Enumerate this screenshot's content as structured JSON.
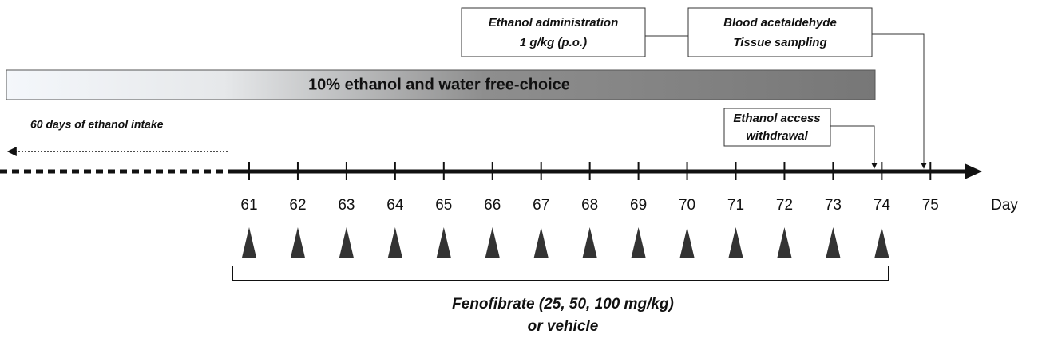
{
  "boxes": [
    {
      "lines": [
        "Ethanol administration",
        "1 g/kg (p.o.)"
      ]
    },
    {
      "lines": [
        "Blood acetaldehyde",
        "Tissue sampling"
      ]
    },
    {
      "lines": [
        "Ethanol access",
        "withdrawal"
      ]
    }
  ],
  "free_choice_label": "10% ethanol and water free-choice",
  "intake_label": "60 days of ethanol intake",
  "days": [
    61,
    62,
    63,
    64,
    65,
    66,
    67,
    68,
    69,
    70,
    71,
    72,
    73,
    74,
    75
  ],
  "axis_label": "Day",
  "treatment_lines": [
    "Fenofibrate (25, 50, 100 mg/kg)",
    "or vehicle"
  ]
}
